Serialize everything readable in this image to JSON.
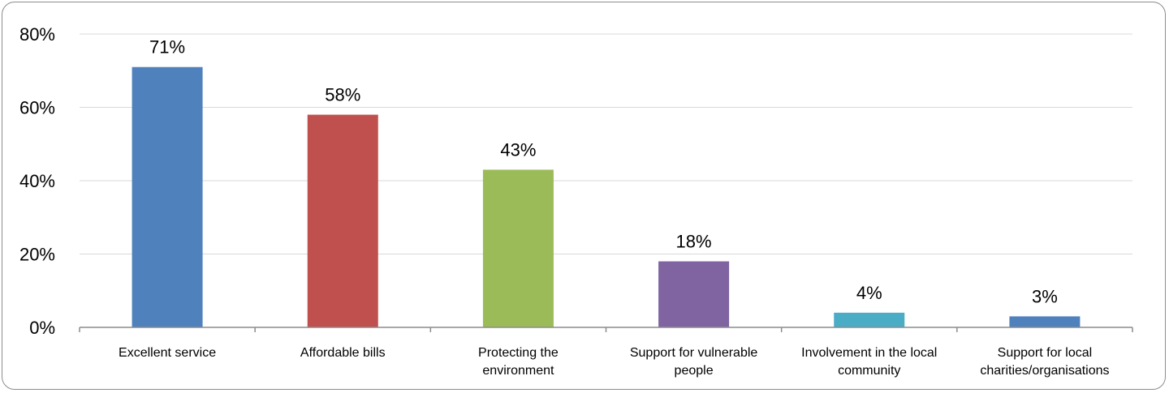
{
  "chart_data": {
    "type": "bar",
    "categories": [
      "Excellent service",
      "Affordable bills",
      "Protecting the environment",
      "Support for vulnerable people",
      "Involvement in the local community",
      "Support for local charities/organisations"
    ],
    "category_lines": [
      [
        "Excellent service"
      ],
      [
        "Affordable bills"
      ],
      [
        "Protecting the",
        "environment"
      ],
      [
        "Support for vulnerable",
        "people"
      ],
      [
        "Involvement in the local",
        "community"
      ],
      [
        "Support for local",
        "charities/organisations"
      ]
    ],
    "values": [
      71,
      58,
      43,
      18,
      4,
      3
    ],
    "data_labels": [
      "71%",
      "58%",
      "43%",
      "18%",
      "4%",
      "3%"
    ],
    "colors": [
      "#4f81bd",
      "#c0504d",
      "#9bbb59",
      "#8064a2",
      "#4bacc6",
      "#4f81bd"
    ],
    "yticks": [
      0,
      20,
      40,
      60,
      80
    ],
    "ytick_labels": [
      "0%",
      "20%",
      "40%",
      "60%",
      "80%"
    ],
    "ylim": [
      0,
      80
    ],
    "grid": true,
    "legend": "none",
    "title": "",
    "xlabel": "",
    "ylabel": ""
  }
}
